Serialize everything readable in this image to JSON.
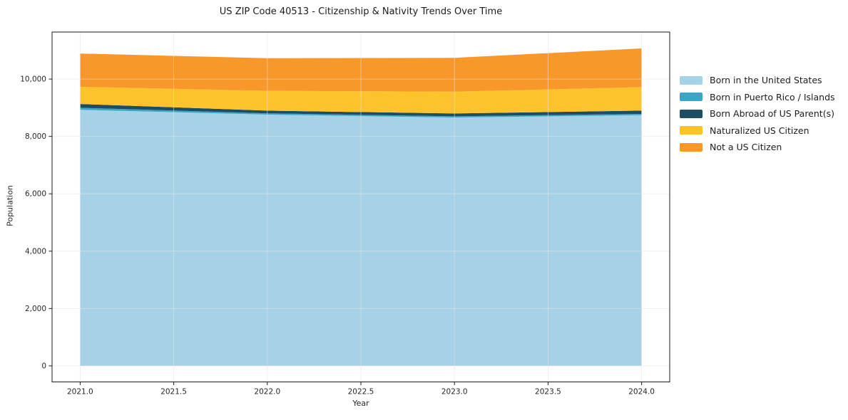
{
  "chart_data": {
    "type": "area",
    "stacked": true,
    "title": "US ZIP Code 40513 - Citizenship & Nativity Trends Over Time",
    "xlabel": "Year",
    "ylabel": "Population",
    "x": [
      2021,
      2022,
      2023,
      2024
    ],
    "series": [
      {
        "name": "Born in the United States",
        "color": "#a6d2e7",
        "values": [
          8930,
          8760,
          8660,
          8740
        ]
      },
      {
        "name": "Born in Puerto Rico / Islands",
        "color": "#3da5c6",
        "values": [
          70,
          45,
          40,
          45
        ]
      },
      {
        "name": "Born Abroad of US Parent(s)",
        "color": "#1d4d63",
        "values": [
          130,
          95,
          100,
          115
        ]
      },
      {
        "name": "Naturalized US Citizen",
        "color": "#fdc32b",
        "values": [
          600,
          690,
          760,
          820
        ]
      },
      {
        "name": "Not a US Citizen",
        "color": "#f8982b",
        "values": [
          1160,
          1140,
          1180,
          1350
        ]
      }
    ],
    "cumulative_totals_per_year": [
      10890,
      10730,
      10740,
      11070
    ],
    "x_ticks": [
      2021.0,
      2021.5,
      2022.0,
      2022.5,
      2023.0,
      2023.5,
      2024.0
    ],
    "x_tick_labels": [
      "2021.0",
      "2021.5",
      "2022.0",
      "2022.5",
      "2023.0",
      "2023.5",
      "2024.0"
    ],
    "y_ticks": [
      0,
      2000,
      4000,
      6000,
      8000,
      10000
    ],
    "y_tick_labels": [
      "0",
      "2,000",
      "4,000",
      "6,000",
      "8,000",
      "10,000"
    ],
    "xlim": [
      2020.85,
      2024.15
    ],
    "ylim": [
      -560,
      11640
    ],
    "grid": true,
    "gridline_color": "#e4e4e4",
    "spine_color": "#1a1a1a",
    "legend_position": "right"
  }
}
